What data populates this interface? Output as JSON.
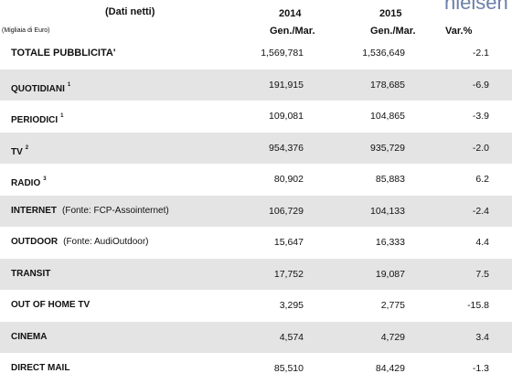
{
  "header": {
    "logo": "nielsen",
    "subtitle": "(Dati netti)",
    "unit": "(Migliaia di Euro)",
    "columns": [
      {
        "year": "2014",
        "period": "Gen./Mar."
      },
      {
        "year": "2015",
        "period": "Gen./Mar."
      },
      {
        "year": null,
        "period": "Var.%"
      }
    ]
  },
  "table": {
    "rows": [
      {
        "label": "TOTALE PUBBLICITA'",
        "values": [
          "1,569,781",
          "1,536,649",
          "-2.1"
        ]
      },
      {
        "label": "QUOTIDIANI",
        "sup": "1",
        "values": [
          "191,915",
          "178,685",
          "-6.9"
        ]
      },
      {
        "label": "PERIODICI",
        "sup": "1",
        "values": [
          "109,081",
          "104,865",
          "-3.9"
        ]
      },
      {
        "label": "TV",
        "sup": "2",
        "values": [
          "954,376",
          "935,729",
          "-2.0"
        ]
      },
      {
        "label": "RADIO",
        "sup": "3",
        "values": [
          "80,902",
          "85,883",
          "6.2"
        ]
      },
      {
        "label": "INTERNET",
        "note": "(Fonte: FCP-Assointernet)",
        "values": [
          "106,729",
          "104,133",
          "-2.4"
        ]
      },
      {
        "label": "OUTDOOR",
        "note": "(Fonte: AudiOutdoor)",
        "values": [
          "15,647",
          "16,333",
          "4.4"
        ]
      },
      {
        "label": "TRANSIT",
        "values": [
          "17,752",
          "19,087",
          "7.5"
        ]
      },
      {
        "label": "OUT OF HOME TV",
        "values": [
          "3,295",
          "2,775",
          "-15.8"
        ]
      },
      {
        "label": "CINEMA",
        "values": [
          "4,574",
          "4,729",
          "3.4"
        ]
      },
      {
        "label": "DIRECT MAIL",
        "values": [
          "85,510",
          "84,429",
          "-1.3"
        ]
      }
    ]
  }
}
